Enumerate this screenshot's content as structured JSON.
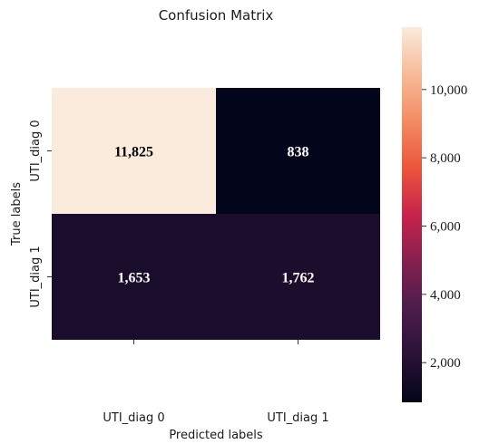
{
  "colors": {
    "background": "#ffffff",
    "cell_text": "#ffffff",
    "cell_text_on_light": "#000000",
    "axis_text": "#1a1a1a",
    "colormap_stops": [
      "#03051a",
      "#2a1136",
      "#4c1d4b",
      "#85204f",
      "#c8234b",
      "#ec553c",
      "#f38c63",
      "#f6bb97",
      "#faebdd"
    ]
  },
  "chart_data": {
    "type": "heatmap",
    "title": "Confusion Matrix",
    "xlabel": "Predicted labels",
    "ylabel": "True labels",
    "x_categories": [
      "UTI_diag 0",
      "UTI_diag 1"
    ],
    "y_categories": [
      "UTI_diag 0",
      "UTI_diag 1"
    ],
    "values": [
      [
        11825,
        838
      ],
      [
        1653,
        1762
      ]
    ],
    "cell_labels": [
      [
        "11,825",
        "838"
      ],
      [
        "1,653",
        "1,762"
      ]
    ],
    "colorbar": {
      "range": [
        838,
        11825
      ],
      "ticks": [
        2000,
        4000,
        6000,
        8000,
        10000
      ],
      "tick_labels": [
        "2,000",
        "4,000",
        "6,000",
        "8,000",
        "10,000"
      ]
    },
    "colormap": "rocket"
  }
}
